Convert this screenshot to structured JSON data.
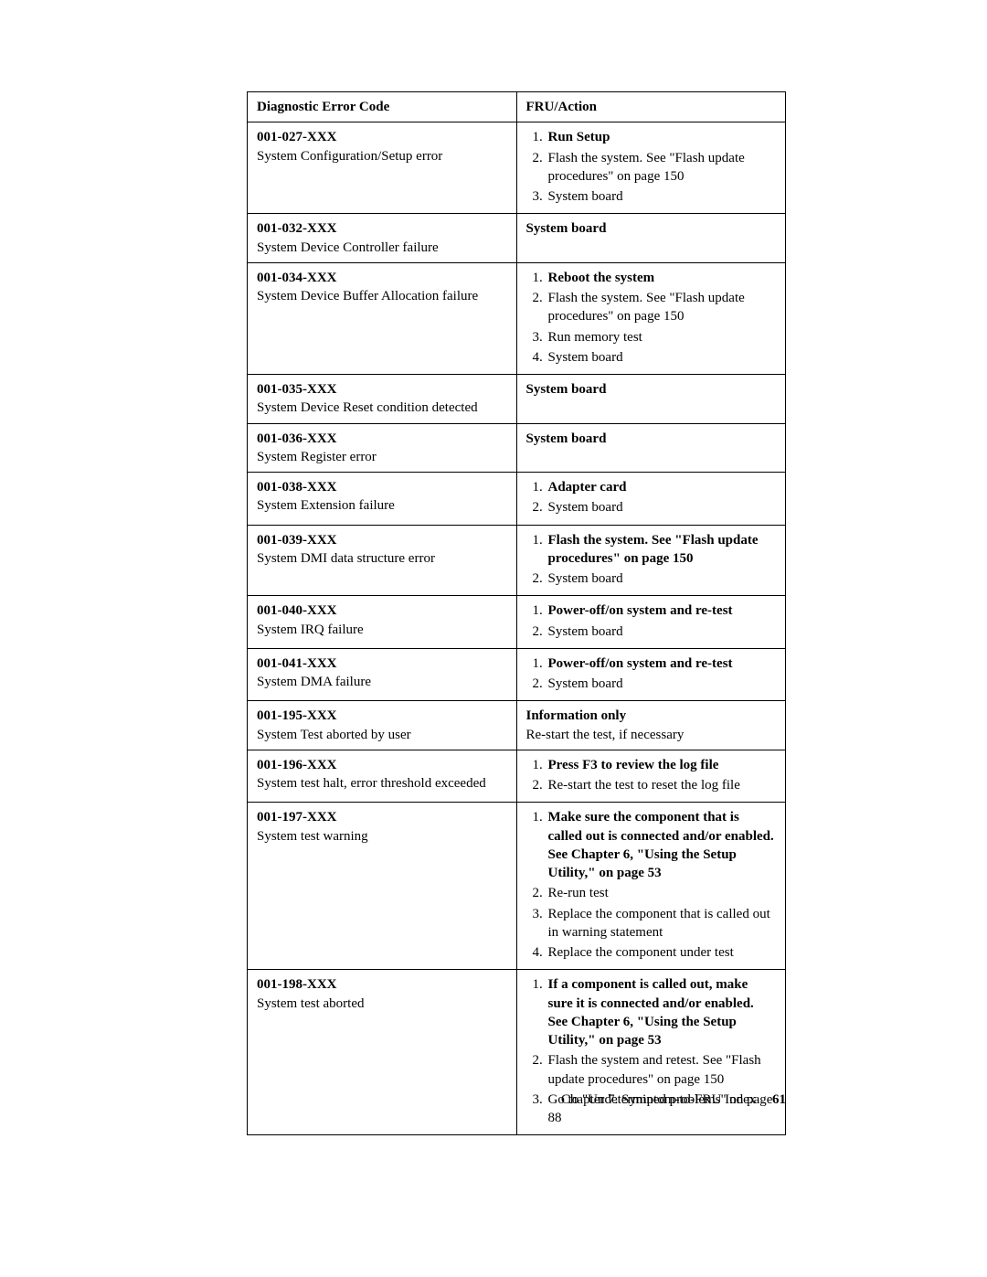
{
  "table": {
    "header_code": "Diagnostic Error Code",
    "header_action": "FRU/Action",
    "rows": [
      {
        "code": "001-027-XXX",
        "desc": "System Configuration/Setup error",
        "action_type": "list",
        "items": [
          {
            "text": "Run Setup",
            "bold": true
          },
          {
            "text": "Flash the system. See \"Flash update procedures\" on page 150",
            "bold": false
          },
          {
            "text": "System board",
            "bold": false
          }
        ]
      },
      {
        "code": "001-032-XXX",
        "desc": "System Device Controller failure",
        "action_type": "plain",
        "plain_bold": "System board"
      },
      {
        "code": "001-034-XXX",
        "desc": "System Device Buffer Allocation failure",
        "action_type": "list",
        "items": [
          {
            "text": "Reboot the system",
            "bold": true
          },
          {
            "text": "Flash the system. See \"Flash update procedures\" on page 150",
            "bold": false
          },
          {
            "text": "Run memory test",
            "bold": false
          },
          {
            "text": "System board",
            "bold": false
          }
        ]
      },
      {
        "code": "001-035-XXX",
        "desc": "System Device Reset condition detected",
        "action_type": "plain",
        "plain_bold": "System board"
      },
      {
        "code": "001-036-XXX",
        "desc": "System Register error",
        "action_type": "plain",
        "plain_bold": "System board"
      },
      {
        "code": "001-038-XXX",
        "desc": "System Extension failure",
        "action_type": "list",
        "items": [
          {
            "text": "Adapter card",
            "bold": true
          },
          {
            "text": "System board",
            "bold": false
          }
        ]
      },
      {
        "code": "001-039-XXX",
        "desc": "System DMI data structure error",
        "action_type": "list",
        "items": [
          {
            "text": "Flash the system. See \"Flash update procedures\" on page 150",
            "bold": true
          },
          {
            "text": "System board",
            "bold": false
          }
        ]
      },
      {
        "code": "001-040-XXX",
        "desc": "System IRQ failure",
        "action_type": "list",
        "items": [
          {
            "text": "Power-off/on system and re-test",
            "bold": true
          },
          {
            "text": "System board",
            "bold": false
          }
        ]
      },
      {
        "code": "001-041-XXX",
        "desc": "System DMA failure",
        "action_type": "list",
        "items": [
          {
            "text": "Power-off/on system and re-test",
            "bold": true
          },
          {
            "text": "System board",
            "bold": false
          }
        ]
      },
      {
        "code": "001-195-XXX",
        "desc": "System Test aborted by user",
        "action_type": "plain",
        "plain_bold": "Information only",
        "plain_rest": "Re-start the test, if necessary"
      },
      {
        "code": "001-196-XXX",
        "desc": "System test halt, error threshold exceeded",
        "action_type": "list",
        "items": [
          {
            "text": "Press F3 to review the log file",
            "bold": true
          },
          {
            "text": "Re-start the test to reset the log file",
            "bold": false
          }
        ]
      },
      {
        "code": "001-197-XXX",
        "desc": "System test warning",
        "action_type": "list",
        "items": [
          {
            "text": "Make sure the component that is called out is connected and/or enabled. See Chapter 6, \"Using the Setup Utility,\" on page 53",
            "bold": true
          },
          {
            "text": "Re-run test",
            "bold": false
          },
          {
            "text": "Replace the component that is called out in warning statement",
            "bold": false
          },
          {
            "text": "Replace the component under test",
            "bold": false
          }
        ]
      },
      {
        "code": "001-198-XXX",
        "desc": "System test aborted",
        "action_type": "list",
        "items": [
          {
            "text": "If a component is called out, make sure it is connected and/or enabled. See Chapter 6, \"Using the Setup Utility,\" on page 53",
            "bold": true
          },
          {
            "text": "Flash the system and retest. See \"Flash update procedures\" on page 150",
            "bold": false
          },
          {
            "text": "Go to \"Undetermined problems\" on page 88",
            "bold": false
          }
        ]
      }
    ]
  },
  "footer": {
    "chapter": "Chapter 7. Symptom-to-FRU Index",
    "page": "61"
  }
}
